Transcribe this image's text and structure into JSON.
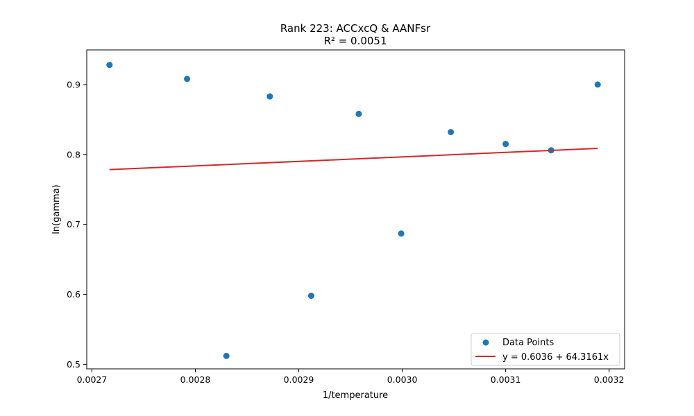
{
  "chart_data": {
    "type": "scatter",
    "title": "Rank 223: ACCxcQ & AANFsr",
    "subtitle": "R² = 0.0051",
    "xlabel": "1/temperature",
    "ylabel": "ln(gamma)",
    "xlim": [
      0.002695,
      0.003215
    ],
    "ylim": [
      0.4935,
      0.9495
    ],
    "x_ticks": [
      0.0027,
      0.0028,
      0.0029,
      0.003,
      0.0031,
      0.0032
    ],
    "x_tick_labels": [
      "0.0027",
      "0.0028",
      "0.0029",
      "0.0030",
      "0.0031",
      "0.0032"
    ],
    "y_ticks": [
      0.5,
      0.6,
      0.7,
      0.8,
      0.9
    ],
    "y_tick_labels": [
      "0.5",
      "0.6",
      "0.7",
      "0.8",
      "0.9"
    ],
    "grid": false,
    "legend_position": "bottom-right",
    "series": [
      {
        "name": "Data Points",
        "kind": "scatter",
        "color": "#1f77b4",
        "points": [
          {
            "x": 0.002717,
            "y": 0.928
          },
          {
            "x": 0.002792,
            "y": 0.908
          },
          {
            "x": 0.00283,
            "y": 0.512
          },
          {
            "x": 0.002872,
            "y": 0.883
          },
          {
            "x": 0.002912,
            "y": 0.598
          },
          {
            "x": 0.002958,
            "y": 0.858
          },
          {
            "x": 0.002999,
            "y": 0.687
          },
          {
            "x": 0.003047,
            "y": 0.832
          },
          {
            "x": 0.0031,
            "y": 0.815
          },
          {
            "x": 0.003144,
            "y": 0.806
          },
          {
            "x": 0.003189,
            "y": 0.9
          }
        ]
      },
      {
        "name": "y = 0.6036 + 64.3161x",
        "kind": "line",
        "color": "#d62728",
        "intercept": 0.6036,
        "slope": 64.3161,
        "x_range": [
          0.002717,
          0.003189
        ]
      }
    ]
  }
}
